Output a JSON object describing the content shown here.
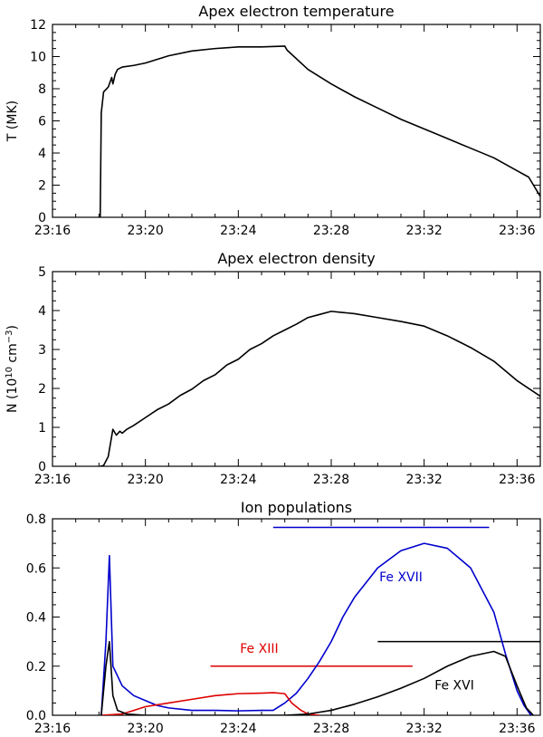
{
  "chart_data": [
    {
      "type": "line",
      "title": "Apex electron temperature",
      "xlabel": "",
      "ylabel": "T (MK)",
      "x_unit": "minutes",
      "xlim": [
        1396,
        1417
      ],
      "ylim": [
        0,
        12
      ],
      "x_ticks": [
        1396,
        1400,
        1404,
        1408,
        1412,
        1416
      ],
      "x_tick_labels": [
        "23:16",
        "23:20",
        "23:24",
        "23:28",
        "23:32",
        "23:36"
      ],
      "y_ticks": [
        0,
        2,
        4,
        6,
        8,
        10,
        12
      ],
      "y_tick_labels": [
        "0",
        "2",
        "4",
        "6",
        "8",
        "10",
        "12"
      ],
      "series": [
        {
          "name": "T",
          "color": "#000000",
          "points": [
            [
              1398.05,
              -0.5
            ],
            [
              1398.1,
              6.5
            ],
            [
              1398.2,
              7.8
            ],
            [
              1398.4,
              8.1
            ],
            [
              1398.55,
              8.7
            ],
            [
              1398.6,
              8.3
            ],
            [
              1398.7,
              8.9
            ],
            [
              1398.8,
              9.2
            ],
            [
              1399,
              9.35
            ],
            [
              1399.5,
              9.45
            ],
            [
              1400,
              9.6
            ],
            [
              1401,
              10.05
            ],
            [
              1402,
              10.35
            ],
            [
              1403,
              10.5
            ],
            [
              1404,
              10.6
            ],
            [
              1405,
              10.6
            ],
            [
              1406,
              10.65
            ],
            [
              1406.1,
              10.4
            ],
            [
              1407,
              9.2
            ],
            [
              1408,
              8.3
            ],
            [
              1409,
              7.5
            ],
            [
              1410,
              6.8
            ],
            [
              1411,
              6.1
            ],
            [
              1412,
              5.5
            ],
            [
              1413,
              4.9
            ],
            [
              1414,
              4.3
            ],
            [
              1415,
              3.7
            ],
            [
              1416,
              2.9
            ],
            [
              1416.5,
              2.5
            ],
            [
              1417,
              1.3
            ]
          ]
        }
      ]
    },
    {
      "type": "line",
      "title": "Apex electron density",
      "xlabel": "",
      "ylabel_prefix": "N (10",
      "ylabel_exp1": "10",
      "ylabel_mid": " cm",
      "ylabel_exp2": "−3",
      "ylabel_suffix": ")",
      "x_unit": "minutes",
      "xlim": [
        1396,
        1417
      ],
      "ylim": [
        0,
        5
      ],
      "x_ticks": [
        1396,
        1400,
        1404,
        1408,
        1412,
        1416
      ],
      "x_tick_labels": [
        "23:16",
        "23:20",
        "23:24",
        "23:28",
        "23:32",
        "23:36"
      ],
      "y_ticks": [
        0,
        1,
        2,
        3,
        4,
        5
      ],
      "y_tick_labels": [
        "0",
        "1",
        "2",
        "3",
        "4",
        "5"
      ],
      "series": [
        {
          "name": "N",
          "color": "#000000",
          "points": [
            [
              1398.05,
              0.0
            ],
            [
              1398.2,
              0.02
            ],
            [
              1398.4,
              0.25
            ],
            [
              1398.5,
              0.6
            ],
            [
              1398.6,
              0.95
            ],
            [
              1398.75,
              0.8
            ],
            [
              1398.9,
              0.9
            ],
            [
              1399,
              0.85
            ],
            [
              1399.2,
              0.95
            ],
            [
              1399.5,
              1.05
            ],
            [
              1400,
              1.25
            ],
            [
              1400.5,
              1.45
            ],
            [
              1401,
              1.6
            ],
            [
              1401.5,
              1.82
            ],
            [
              1402,
              1.98
            ],
            [
              1402.5,
              2.2
            ],
            [
              1403,
              2.35
            ],
            [
              1403.5,
              2.6
            ],
            [
              1404,
              2.75
            ],
            [
              1404.5,
              3.0
            ],
            [
              1405,
              3.15
            ],
            [
              1405.5,
              3.35
            ],
            [
              1406,
              3.5
            ],
            [
              1406.5,
              3.65
            ],
            [
              1407,
              3.82
            ],
            [
              1407.5,
              3.9
            ],
            [
              1408,
              3.98
            ],
            [
              1408.5,
              3.95
            ],
            [
              1409,
              3.92
            ],
            [
              1410,
              3.82
            ],
            [
              1411,
              3.72
            ],
            [
              1412,
              3.6
            ],
            [
              1413,
              3.35
            ],
            [
              1414,
              3.05
            ],
            [
              1415,
              2.7
            ],
            [
              1416,
              2.2
            ],
            [
              1417,
              1.8
            ]
          ]
        }
      ]
    },
    {
      "type": "line",
      "title": "Ion populations",
      "xlabel": "",
      "ylabel": "",
      "x_unit": "minutes",
      "xlim": [
        1396,
        1417
      ],
      "ylim": [
        0,
        0.8
      ],
      "x_ticks": [
        1396,
        1400,
        1404,
        1408,
        1412,
        1416
      ],
      "x_tick_labels": [
        "23:16",
        "23:20",
        "23:24",
        "23:28",
        "23:32",
        "23:36"
      ],
      "y_ticks": [
        0,
        0.2,
        0.4,
        0.6,
        0.8
      ],
      "y_tick_labels": [
        "0.0",
        "0.2",
        "0.4",
        "0.6",
        "0.8"
      ],
      "series": [
        {
          "name": "Fe XVII",
          "color": "#0000cc",
          "points": [
            [
              1398.1,
              0.0
            ],
            [
              1398.3,
              0.3
            ],
            [
              1398.45,
              0.65
            ],
            [
              1398.6,
              0.2
            ],
            [
              1399,
              0.12
            ],
            [
              1399.5,
              0.08
            ],
            [
              1400,
              0.06
            ],
            [
              1400.5,
              0.04
            ],
            [
              1401,
              0.03
            ],
            [
              1402,
              0.02
            ],
            [
              1403,
              0.02
            ],
            [
              1404,
              0.018
            ],
            [
              1405,
              0.02
            ],
            [
              1405.5,
              0.02
            ],
            [
              1406,
              0.05
            ],
            [
              1406.5,
              0.09
            ],
            [
              1407,
              0.15
            ],
            [
              1407.5,
              0.22
            ],
            [
              1408,
              0.3
            ],
            [
              1408.5,
              0.4
            ],
            [
              1409,
              0.48
            ],
            [
              1410,
              0.6
            ],
            [
              1411,
              0.67
            ],
            [
              1412,
              0.7
            ],
            [
              1413,
              0.68
            ],
            [
              1414,
              0.6
            ],
            [
              1415,
              0.42
            ],
            [
              1415.5,
              0.25
            ],
            [
              1416,
              0.1
            ],
            [
              1416.3,
              0.04
            ],
            [
              1416.6,
              0.0
            ]
          ]
        },
        {
          "name": "Fe XIII",
          "color": "#dd0000",
          "points": [
            [
              1398.1,
              0.0
            ],
            [
              1399,
              0.005
            ],
            [
              1399.5,
              0.02
            ],
            [
              1400,
              0.035
            ],
            [
              1401,
              0.05
            ],
            [
              1402,
              0.065
            ],
            [
              1403,
              0.08
            ],
            [
              1404,
              0.088
            ],
            [
              1405,
              0.09
            ],
            [
              1405.5,
              0.092
            ],
            [
              1406,
              0.088
            ],
            [
              1406.3,
              0.05
            ],
            [
              1406.7,
              0.02
            ],
            [
              1407,
              0.005
            ],
            [
              1407.5,
              0.0
            ]
          ]
        },
        {
          "name": "Fe XVI",
          "color": "#000000",
          "points": [
            [
              1398.1,
              0.0
            ],
            [
              1398.3,
              0.2
            ],
            [
              1398.45,
              0.3
            ],
            [
              1398.6,
              0.08
            ],
            [
              1398.8,
              0.02
            ],
            [
              1399.2,
              0.005
            ],
            [
              1400,
              0.0
            ],
            [
              1406,
              0.0
            ],
            [
              1407,
              0.005
            ],
            [
              1408,
              0.02
            ],
            [
              1409,
              0.045
            ],
            [
              1410,
              0.075
            ],
            [
              1411,
              0.11
            ],
            [
              1412,
              0.15
            ],
            [
              1413,
              0.2
            ],
            [
              1414,
              0.24
            ],
            [
              1415,
              0.26
            ],
            [
              1415.5,
              0.24
            ],
            [
              1416,
              0.12
            ],
            [
              1416.4,
              0.03
            ],
            [
              1416.7,
              0.0
            ]
          ]
        }
      ],
      "range_bars": [
        {
          "name": "Fe XVII",
          "color": "#0000cc",
          "x0": 1405.5,
          "x1": 1414.8,
          "y": 0.765
        },
        {
          "name": "Fe XIII",
          "color": "#dd0000",
          "x0": 1402.8,
          "x1": 1411.5,
          "y": 0.2
        },
        {
          "name": "Fe XVI",
          "color": "#000000",
          "x0": 1410,
          "x1": 1417,
          "y": 0.3
        }
      ],
      "annotations": [
        {
          "text": "Fe XVII",
          "color": "#0000cc",
          "x": 1411.0,
          "y": 0.545
        },
        {
          "text": "Fe XIII",
          "color": "#dd0000",
          "x": 1404.9,
          "y": 0.255
        },
        {
          "text": "Fe XVI",
          "color": "#000000",
          "x": 1413.3,
          "y": 0.105
        }
      ]
    }
  ]
}
